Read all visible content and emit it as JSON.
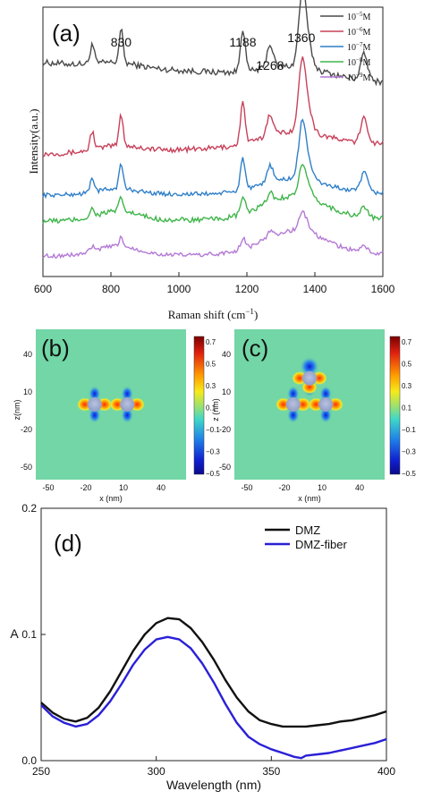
{
  "chart_data": [
    {
      "panel": "(a)",
      "type": "line",
      "xlabel": "Raman shift (cm",
      "xlabel_sup": "−1",
      "xlabel_close": ")",
      "ylabel": "Intensity(a.u.)",
      "xlim": [
        600,
        1600
      ],
      "xticks": [
        600,
        800,
        1000,
        1200,
        1400,
        1600
      ],
      "legend_position": "top-right",
      "peak_labels": [
        {
          "text": "830",
          "x": 830
        },
        {
          "text": "1188",
          "x": 1188
        },
        {
          "text": "1268",
          "x": 1268
        },
        {
          "text": "1360",
          "x": 1360
        }
      ],
      "peaks": [
        {
          "center": 745,
          "width": 6,
          "h": 0.45
        },
        {
          "center": 830,
          "width": 6,
          "h": 0.75
        },
        {
          "center": 1188,
          "width": 7,
          "h": 1.0
        },
        {
          "center": 1268,
          "width": 9,
          "h": 0.55
        },
        {
          "center": 1362,
          "width": 10,
          "h": 1.35
        },
        {
          "center": 1375,
          "width": 14,
          "h": 0.7
        },
        {
          "center": 1545,
          "width": 10,
          "h": 0.6
        }
      ],
      "series": [
        {
          "name": "10",
          "exp": "−5",
          "unit": "M",
          "color": "#4a4a4a",
          "start": 0.0,
          "end": -0.45,
          "scale": 1.0,
          "broad": 0.25,
          "noise": 0.07
        },
        {
          "name": "10",
          "exp": "−6",
          "unit": "M",
          "color": "#c8415a",
          "start": 0.0,
          "end": 0.25,
          "scale": 0.95,
          "broad": 0.35,
          "noise": 0.06
        },
        {
          "name": "10",
          "exp": "−7",
          "unit": "M",
          "color": "#2f7fc9",
          "start": 0.0,
          "end": 0.05,
          "scale": 0.75,
          "broad": 0.35,
          "noise": 0.05
        },
        {
          "name": "10",
          "exp": "−8",
          "unit": "M",
          "color": "#3fb54a",
          "start": 0.0,
          "end": 0.05,
          "scale": 0.4,
          "broad": 0.55,
          "noise": 0.06
        },
        {
          "name": "10",
          "exp": "−9",
          "unit": "M",
          "color": "#b479d6",
          "start": 0.0,
          "end": 0.05,
          "scale": 0.25,
          "broad": 0.55,
          "noise": 0.05
        }
      ]
    },
    {
      "panel": "(b)",
      "type": "heatmap",
      "xlabel": "x (nm)",
      "ylabel": "z(nm)",
      "xticks": [
        -50,
        -20,
        10,
        40
      ],
      "yticks": [
        40,
        10,
        -20,
        -50
      ],
      "colorbar_ticks": [
        "0.7",
        "0.5",
        "0.3",
        "0.1",
        "−0.1",
        "−0.3",
        "−0.5"
      ],
      "particles": [
        {
          "x": -13,
          "z": 0
        },
        {
          "x": 13,
          "z": 0
        }
      ]
    },
    {
      "panel": "(c)",
      "type": "heatmap",
      "xlabel": "x (nm)",
      "ylabel": "z (nm)",
      "xticks": [
        -50,
        -20,
        10,
        40
      ],
      "yticks": [
        40,
        10,
        -20,
        -50
      ],
      "colorbar_ticks": [
        "0.7",
        "0.5",
        "0.3",
        "0.1",
        "−0.1",
        "−0.3",
        "−0.5"
      ],
      "particles": [
        {
          "x": -13,
          "z": 0
        },
        {
          "x": 13,
          "z": 0
        },
        {
          "x": 0,
          "z": 21
        }
      ]
    },
    {
      "panel": "(d)",
      "type": "line",
      "xlabel": "Wavelength (nm)",
      "ylabel": "A",
      "xlim": [
        250,
        400
      ],
      "ylim": [
        0,
        0.2
      ],
      "xticks": [
        250,
        300,
        350,
        400
      ],
      "yticks": [
        0.0,
        0.1,
        0.2
      ],
      "legend_position": "top-right",
      "series": [
        {
          "name": "DMZ",
          "color": "#111111",
          "x": [
            250,
            255,
            260,
            265,
            270,
            275,
            280,
            285,
            290,
            295,
            300,
            305,
            310,
            315,
            320,
            325,
            330,
            335,
            340,
            345,
            350,
            355,
            360,
            365,
            370,
            375,
            380,
            385,
            390,
            395,
            400
          ],
          "y": [
            0.046,
            0.038,
            0.033,
            0.031,
            0.034,
            0.042,
            0.055,
            0.071,
            0.087,
            0.1,
            0.109,
            0.113,
            0.112,
            0.105,
            0.094,
            0.08,
            0.064,
            0.05,
            0.039,
            0.032,
            0.029,
            0.027,
            0.027,
            0.027,
            0.028,
            0.029,
            0.031,
            0.032,
            0.034,
            0.036,
            0.039
          ]
        },
        {
          "name": "DMZ-fiber",
          "color": "#2a20d6",
          "x": [
            250,
            255,
            260,
            265,
            270,
            275,
            280,
            285,
            290,
            295,
            300,
            305,
            310,
            315,
            320,
            325,
            330,
            335,
            340,
            345,
            350,
            355,
            360,
            363,
            365,
            370,
            375,
            380,
            385,
            390,
            395,
            400
          ],
          "y": [
            0.044,
            0.035,
            0.03,
            0.027,
            0.029,
            0.036,
            0.047,
            0.061,
            0.076,
            0.088,
            0.096,
            0.098,
            0.096,
            0.089,
            0.077,
            0.062,
            0.045,
            0.03,
            0.019,
            0.013,
            0.009,
            0.006,
            0.003,
            0.002,
            0.004,
            0.005,
            0.006,
            0.008,
            0.01,
            0.012,
            0.014,
            0.017
          ]
        }
      ]
    }
  ]
}
